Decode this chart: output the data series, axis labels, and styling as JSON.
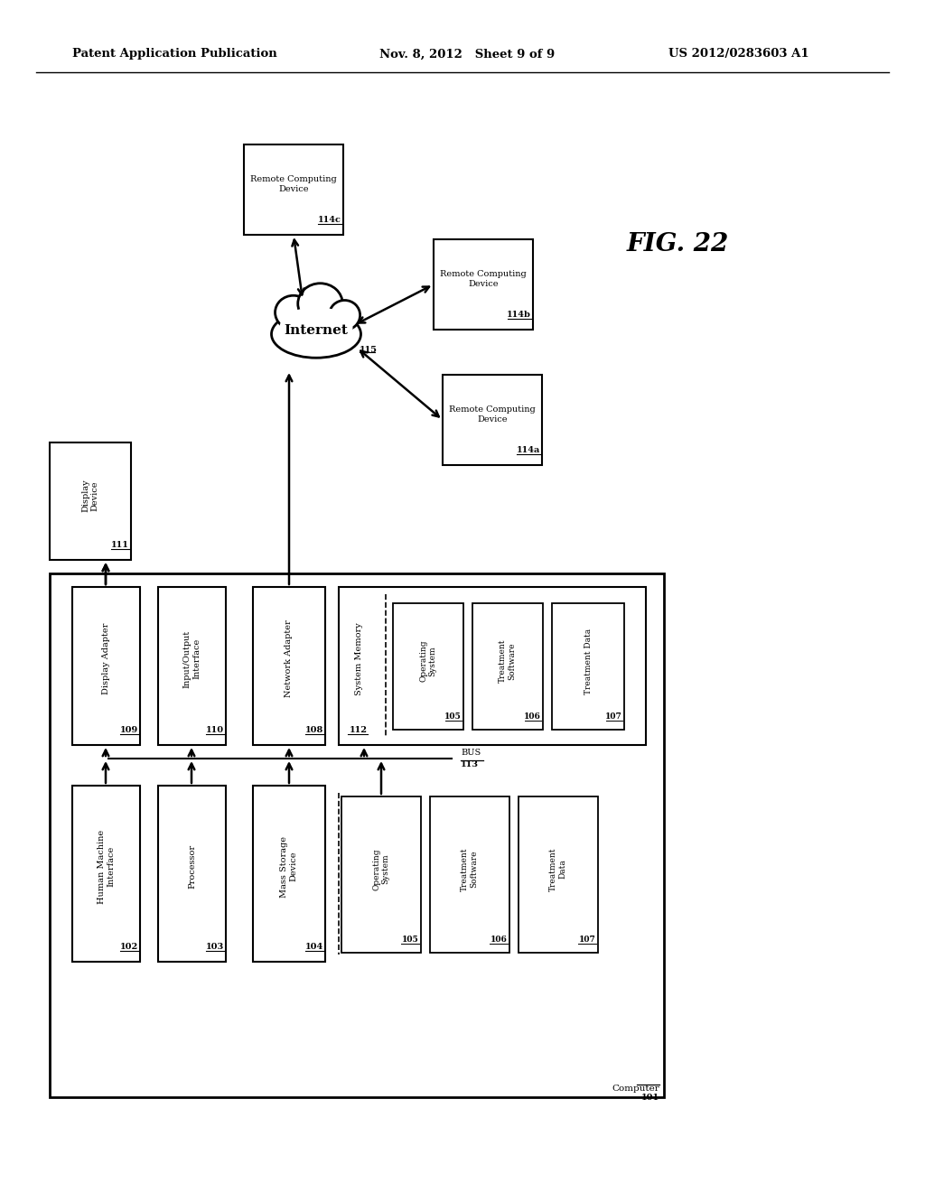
{
  "header_left": "Patent Application Publication",
  "header_mid": "Nov. 8, 2012   Sheet 9 of 9",
  "header_right": "US 2012/0283603 A1",
  "fig_label": "FIG. 22",
  "bg_color": "#ffffff"
}
